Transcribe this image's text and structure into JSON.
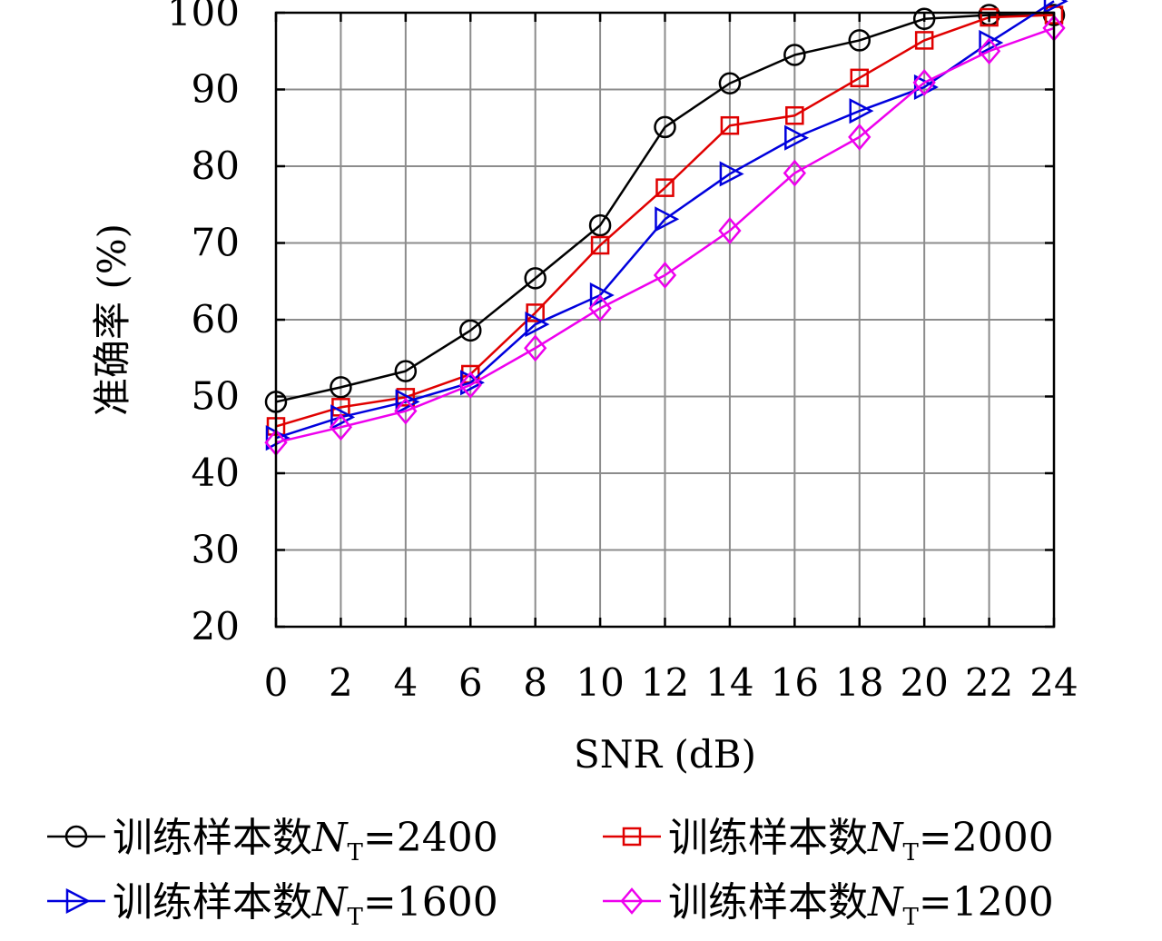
{
  "chart_data": {
    "type": "line",
    "xlabel": "SNR (dB)",
    "ylabel": "准确率 (%)",
    "xlim": [
      0,
      24
    ],
    "ylim": [
      20,
      100
    ],
    "x_ticks": [
      0,
      2,
      4,
      6,
      8,
      10,
      12,
      14,
      16,
      18,
      20,
      22,
      24
    ],
    "y_ticks": [
      20,
      30,
      40,
      50,
      60,
      70,
      80,
      90,
      100
    ],
    "grid": true,
    "legend_position": "bottom",
    "x": [
      0,
      2,
      4,
      6,
      8,
      10,
      12,
      14,
      16,
      18,
      20,
      22,
      24
    ],
    "series": [
      {
        "name": "训练样本数N_T=2400",
        "legend_prefix": "训练样本数",
        "legend_var": "N",
        "legend_sub": "T",
        "legend_value": "=2400",
        "color": "#000000",
        "marker": "circle",
        "values": [
          49.3,
          51.2,
          53.3,
          58.6,
          65.4,
          72.3,
          85.1,
          90.8,
          94.5,
          96.4,
          99.2,
          99.7,
          99.7
        ]
      },
      {
        "name": "训练样本数N_T=2000",
        "legend_prefix": "训练样本数",
        "legend_var": "N",
        "legend_sub": "T",
        "legend_value": "=2000",
        "color": "#e00000",
        "marker": "square",
        "values": [
          46.1,
          48.6,
          49.9,
          52.9,
          60.9,
          69.7,
          77.2,
          85.3,
          86.6,
          91.5,
          96.4,
          99.4,
          99.7
        ]
      },
      {
        "name": "训练样本数N_T=1600",
        "legend_prefix": "训练样本数",
        "legend_var": "N",
        "legend_sub": "T",
        "legend_value": "=1600",
        "color": "#0000dd",
        "marker": "triangle-right",
        "values": [
          44.6,
          47.3,
          49.3,
          51.8,
          59.4,
          63.2,
          73.1,
          79.0,
          83.7,
          87.2,
          90.3,
          96.1,
          101.5
        ]
      },
      {
        "name": "训练样本数N_T=1200",
        "legend_prefix": "训练样本数",
        "legend_var": "N",
        "legend_sub": "T",
        "legend_value": "=1200",
        "color": "#ee00ee",
        "marker": "diamond",
        "values": [
          44.0,
          46.0,
          48.1,
          51.5,
          56.3,
          61.5,
          65.8,
          71.6,
          79.1,
          83.8,
          90.9,
          95.0,
          98.0
        ]
      }
    ]
  }
}
